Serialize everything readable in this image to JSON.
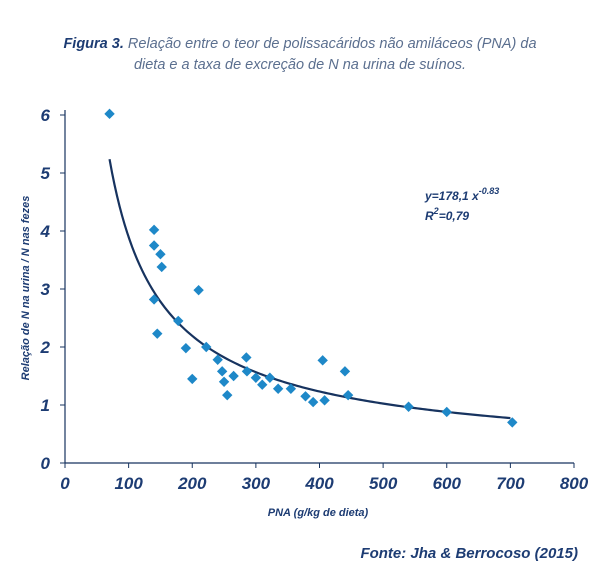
{
  "caption": {
    "figure_label": "Figura 3.",
    "text": "Relação entre o teor de polissacáridos não amiláceos (PNA) da dieta e a taxa de excreção de N na urina de suínos."
  },
  "source": "Fonte: Jha & Berrocoso (2015)",
  "chart_data": {
    "type": "scatter",
    "xlabel": "PNA (g/kg de dieta)",
    "ylabel": "Relação de N na urina / N nas fezes",
    "xlim": [
      0,
      800
    ],
    "ylim": [
      0,
      6
    ],
    "x_ticks": [
      "0",
      "100",
      "200",
      "300",
      "400",
      "500",
      "600",
      "700",
      "800"
    ],
    "y_ticks": [
      "0",
      "1",
      "2",
      "3",
      "4",
      "5",
      "6"
    ],
    "grid": false,
    "colors": {
      "points": "#1e88c8",
      "curve": "#17335f",
      "axes": "#17335f"
    },
    "equation": {
      "line1": "y=178,1 x",
      "line1_exp": "-0.83",
      "line2_pre": "R",
      "line2_exp": "2",
      "line2_post": "=0,79"
    },
    "trendline": {
      "type": "power",
      "a": 178.1,
      "b": -0.83,
      "x_range": [
        70,
        700
      ]
    },
    "points": [
      {
        "x": 70,
        "y": 6.02
      },
      {
        "x": 140,
        "y": 4.02
      },
      {
        "x": 140,
        "y": 3.75
      },
      {
        "x": 150,
        "y": 3.6
      },
      {
        "x": 152,
        "y": 3.38
      },
      {
        "x": 140,
        "y": 2.82
      },
      {
        "x": 145,
        "y": 2.23
      },
      {
        "x": 210,
        "y": 2.98
      },
      {
        "x": 178,
        "y": 2.45
      },
      {
        "x": 190,
        "y": 1.98
      },
      {
        "x": 200,
        "y": 1.45
      },
      {
        "x": 222,
        "y": 2.0
      },
      {
        "x": 240,
        "y": 1.78
      },
      {
        "x": 247,
        "y": 1.58
      },
      {
        "x": 250,
        "y": 1.4
      },
      {
        "x": 255,
        "y": 1.17
      },
      {
        "x": 265,
        "y": 1.5
      },
      {
        "x": 285,
        "y": 1.82
      },
      {
        "x": 286,
        "y": 1.58
      },
      {
        "x": 300,
        "y": 1.47
      },
      {
        "x": 310,
        "y": 1.35
      },
      {
        "x": 322,
        "y": 1.47
      },
      {
        "x": 335,
        "y": 1.28
      },
      {
        "x": 355,
        "y": 1.28
      },
      {
        "x": 378,
        "y": 1.15
      },
      {
        "x": 390,
        "y": 1.05
      },
      {
        "x": 405,
        "y": 1.77
      },
      {
        "x": 408,
        "y": 1.08
      },
      {
        "x": 440,
        "y": 1.58
      },
      {
        "x": 445,
        "y": 1.17
      },
      {
        "x": 540,
        "y": 0.97
      },
      {
        "x": 600,
        "y": 0.88
      },
      {
        "x": 703,
        "y": 0.7
      }
    ]
  }
}
